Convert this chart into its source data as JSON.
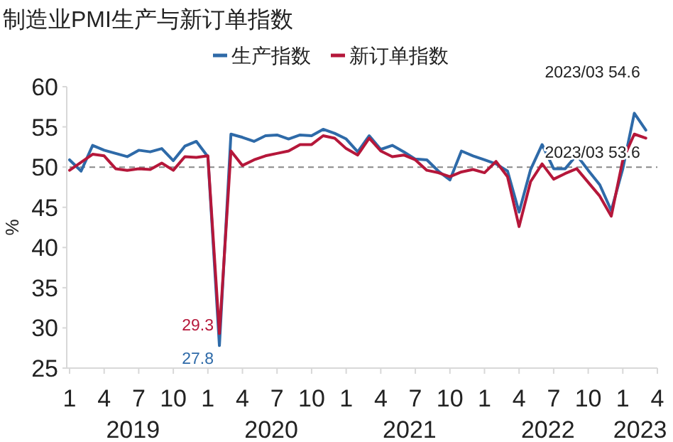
{
  "chart_data": {
    "type": "line",
    "title": "制造业PMI生产与新订单指数",
    "ylabel": "%",
    "categories": [
      "1",
      null,
      null,
      "4",
      null,
      null,
      "7",
      null,
      null,
      "10",
      null,
      null,
      "1",
      null,
      null,
      "4",
      null,
      null,
      "7",
      null,
      null,
      "10",
      null,
      null,
      "1",
      null,
      null,
      "4",
      null,
      null,
      "7",
      null,
      null,
      "10",
      null,
      null,
      "1",
      null,
      null,
      "4",
      null,
      null,
      "7",
      null,
      null,
      "10",
      null,
      null,
      "1",
      null,
      null,
      "4"
    ],
    "series": [
      {
        "name": "生产指数",
        "color": "#2e6aa8",
        "values": [
          50.9,
          49.5,
          52.7,
          52.1,
          51.7,
          51.3,
          52.1,
          51.9,
          52.3,
          50.8,
          52.6,
          53.2,
          51.3,
          27.8,
          54.1,
          53.7,
          53.2,
          53.9,
          54.0,
          53.5,
          54.0,
          53.9,
          54.7,
          54.2,
          53.5,
          51.9,
          53.9,
          52.2,
          52.7,
          51.9,
          51.0,
          50.9,
          49.5,
          48.4,
          52.0,
          51.4,
          50.9,
          50.4,
          49.5,
          44.4,
          49.7,
          52.8,
          49.8,
          49.8,
          51.5,
          49.6,
          47.8,
          44.6,
          49.8,
          56.7,
          54.6,
          null
        ],
        "value_labels": [
          null,
          null,
          null,
          null,
          null,
          null,
          null,
          null,
          null,
          null,
          null,
          null,
          null,
          "27.8",
          null,
          null,
          null,
          null,
          null,
          null,
          null,
          null,
          null,
          null,
          null,
          null,
          null,
          null,
          null,
          null,
          null,
          null,
          null,
          null,
          null,
          null,
          null,
          null,
          null,
          null,
          null,
          null,
          null,
          null,
          null,
          null,
          null,
          null,
          null,
          null,
          "2023/03 54.6",
          null
        ]
      },
      {
        "name": "新订单指数",
        "color": "#b5173a",
        "values": [
          49.6,
          50.6,
          51.6,
          51.4,
          49.8,
          49.6,
          49.8,
          49.7,
          50.5,
          49.6,
          51.3,
          51.2,
          51.4,
          29.3,
          52.0,
          50.2,
          50.9,
          51.4,
          51.7,
          52.0,
          52.8,
          52.8,
          53.9,
          53.6,
          52.3,
          51.5,
          53.6,
          52.0,
          51.3,
          51.5,
          50.9,
          49.6,
          49.3,
          48.8,
          49.4,
          49.7,
          49.3,
          50.7,
          48.8,
          42.6,
          48.2,
          50.4,
          48.5,
          49.2,
          49.8,
          48.1,
          46.4,
          43.9,
          50.9,
          54.1,
          53.6,
          null
        ],
        "value_labels": [
          null,
          null,
          null,
          null,
          null,
          null,
          null,
          null,
          null,
          null,
          null,
          null,
          null,
          "29.3",
          null,
          null,
          null,
          null,
          null,
          null,
          null,
          null,
          null,
          null,
          null,
          null,
          null,
          null,
          null,
          null,
          null,
          null,
          null,
          null,
          null,
          null,
          null,
          null,
          null,
          null,
          null,
          null,
          null,
          null,
          null,
          null,
          null,
          null,
          null,
          null,
          "2023/03 53.6",
          null
        ]
      }
    ],
    "ylim": [
      25,
      60
    ],
    "yticks": [
      25,
      30,
      35,
      40,
      45,
      50,
      55,
      60
    ],
    "ref_lines": [
      {
        "axis": "y",
        "value": 50,
        "color": "#888888",
        "line_style": "dashed"
      }
    ],
    "annotations": [
      "2019",
      "2020",
      "2021",
      "2022",
      "2023"
    ],
    "legend": "top",
    "grid": false,
    "marker": "none",
    "line_style": "solid"
  }
}
